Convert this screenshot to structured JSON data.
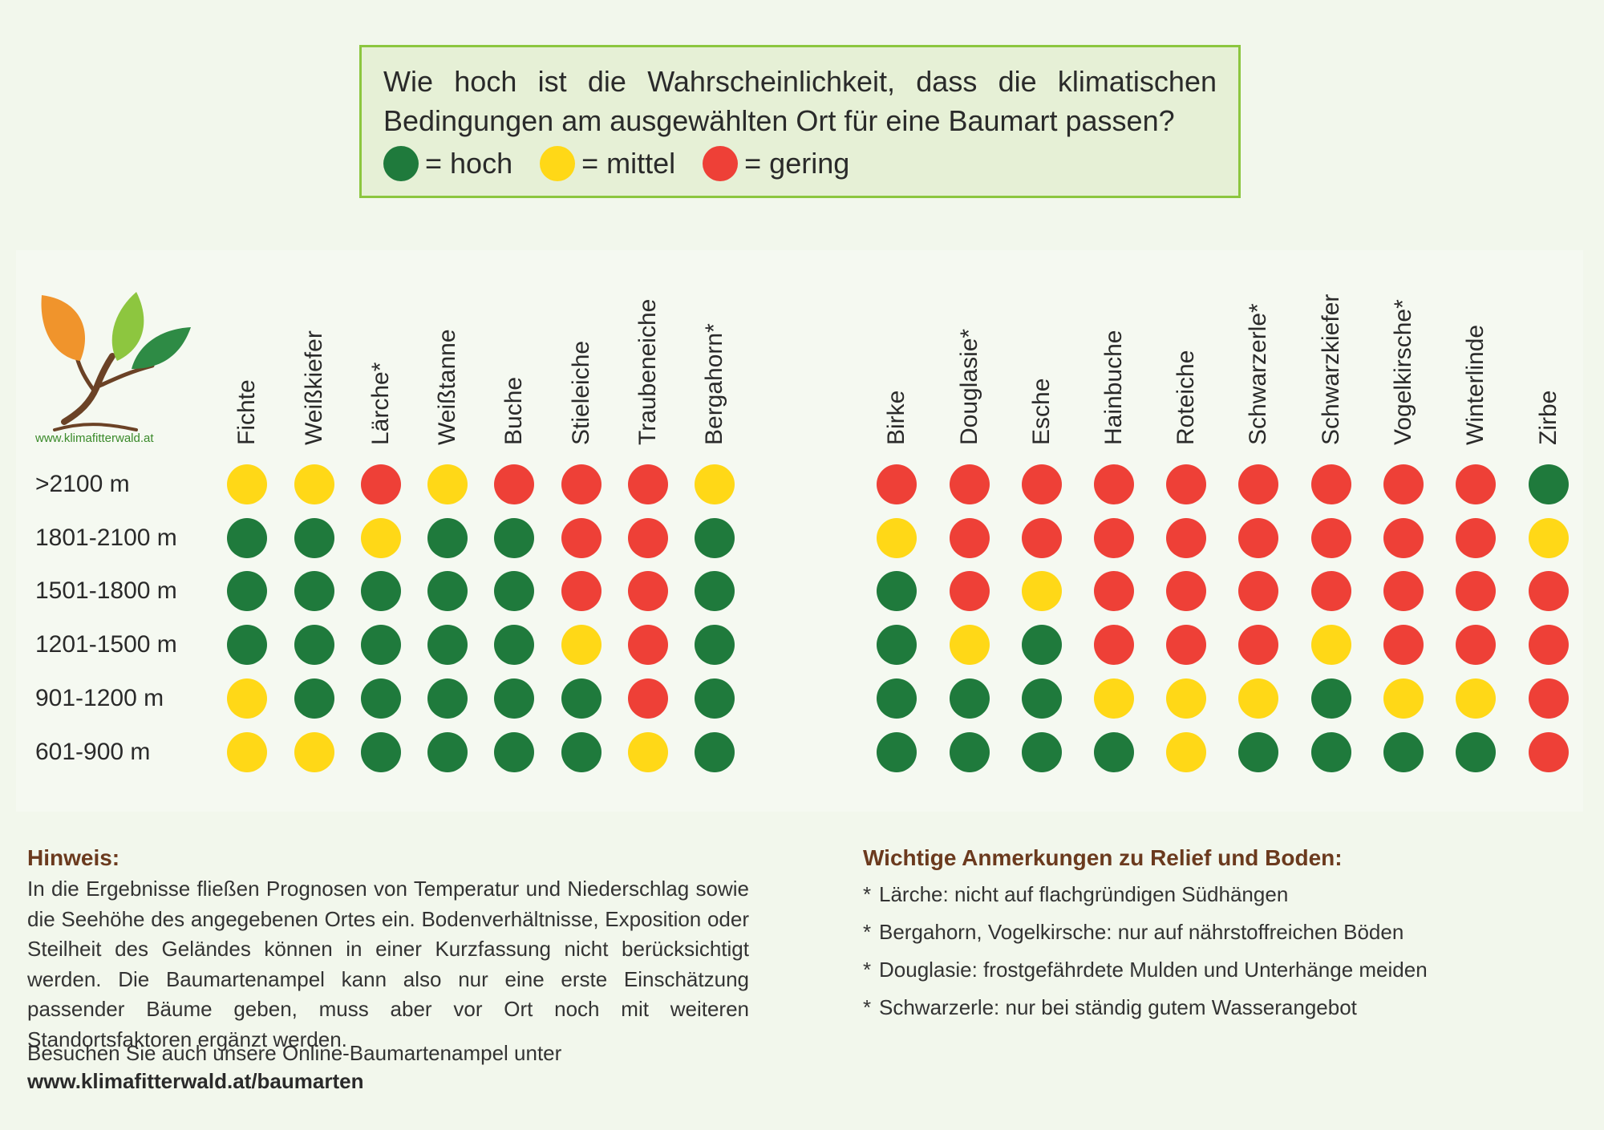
{
  "question": {
    "text": "Wie hoch ist die Wahrscheinlichkeit, dass die klimatischen Bedingungen am ausgewählten Ort für eine Baumart passen?",
    "legend": [
      {
        "label": "= hoch",
        "level": "hoch"
      },
      {
        "label": "= mittel",
        "level": "mittel"
      },
      {
        "label": "= gering",
        "level": "gering"
      }
    ]
  },
  "colors": {
    "hoch": "#1f7a3c",
    "mittel": "#ffd817",
    "gering": "#ee4037"
  },
  "logo": {
    "text": "www.klimafitterwald.at"
  },
  "species": [
    "Fichte",
    "Weißkiefer",
    "Lärche*",
    "Weißtanne",
    "Buche",
    "Stieleiche",
    "Traubeneiche",
    "Bergahorn*",
    "Birke",
    "Douglasie*",
    "Esche",
    "Hainbuche",
    "Roteiche",
    "Schwarzerle*",
    "Schwarzkiefer",
    "Vogelkirsche*",
    "Winterlinde",
    "Zirbe"
  ],
  "elevations": [
    ">2100 m",
    "1801-2100 m",
    "1501-1800 m",
    "1201-1500 m",
    "901-1200 m",
    "601-900 m"
  ],
  "ratings": [
    [
      "mittel",
      "mittel",
      "gering",
      "mittel",
      "gering",
      "gering",
      "gering",
      "mittel",
      "gering",
      "gering",
      "gering",
      "gering",
      "gering",
      "gering",
      "gering",
      "gering",
      "gering",
      "hoch"
    ],
    [
      "hoch",
      "hoch",
      "mittel",
      "hoch",
      "hoch",
      "gering",
      "gering",
      "hoch",
      "mittel",
      "gering",
      "gering",
      "gering",
      "gering",
      "gering",
      "gering",
      "gering",
      "gering",
      "mittel"
    ],
    [
      "hoch",
      "hoch",
      "hoch",
      "hoch",
      "hoch",
      "gering",
      "gering",
      "hoch",
      "hoch",
      "gering",
      "mittel",
      "gering",
      "gering",
      "gering",
      "gering",
      "gering",
      "gering",
      "gering"
    ],
    [
      "hoch",
      "hoch",
      "hoch",
      "hoch",
      "hoch",
      "mittel",
      "gering",
      "hoch",
      "hoch",
      "mittel",
      "hoch",
      "gering",
      "gering",
      "gering",
      "mittel",
      "gering",
      "gering",
      "gering"
    ],
    [
      "mittel",
      "hoch",
      "hoch",
      "hoch",
      "hoch",
      "hoch",
      "gering",
      "hoch",
      "hoch",
      "hoch",
      "hoch",
      "mittel",
      "mittel",
      "mittel",
      "hoch",
      "mittel",
      "mittel",
      "gering"
    ],
    [
      "mittel",
      "mittel",
      "hoch",
      "hoch",
      "hoch",
      "hoch",
      "mittel",
      "hoch",
      "hoch",
      "hoch",
      "hoch",
      "hoch",
      "mittel",
      "hoch",
      "hoch",
      "hoch",
      "hoch",
      "gering"
    ]
  ],
  "hint": {
    "heading": "Hinweis:",
    "text": "In die Ergebnisse fließen Prognosen von Temperatur und Niederschlag sowie die Seehöhe des angegebenen Ortes ein. Bodenverhältnisse, Exposition oder Steilheit des Geländes können in einer Kurzfassung nicht berücksichtigt werden. Die Baumartenampel kann also nur eine erste Einschätzung passender Bäume geben, muss aber vor Ort noch mit weiteren Standortsfaktoren ergänzt werden.",
    "visit": "Besuchen Sie auch unsere Online-Baumartenampel unter",
    "url": "www.klimafitterwald.at/baumarten"
  },
  "notes": {
    "heading": "Wichtige Anmerkungen zu Relief und Boden:",
    "items": [
      "Lärche: nicht auf flachgründigen Südhängen",
      "Bergahorn, Vogelkirsche: nur auf nährstoffreichen Böden",
      "Douglasie: frostgefährdete Mulden und Unterhänge meiden",
      "Schwarzerle: nur bei ständig gutem Wasserangebot"
    ]
  }
}
